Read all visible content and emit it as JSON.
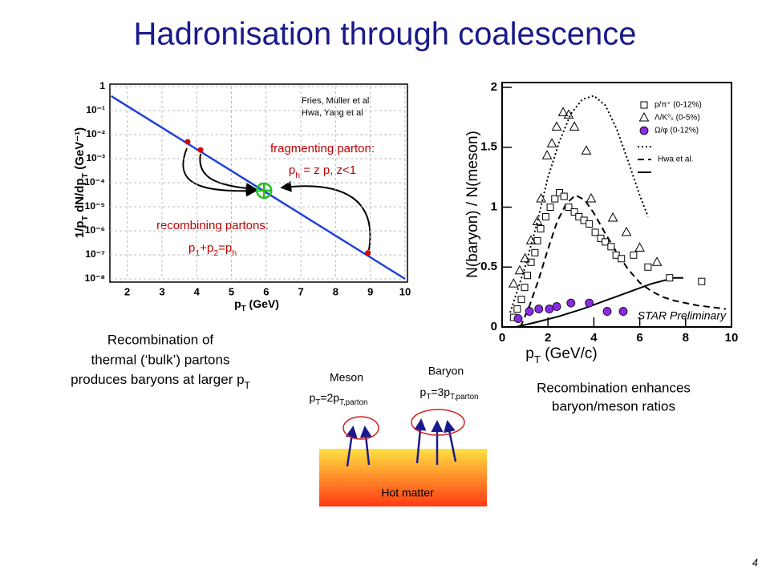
{
  "slide": {
    "title": "Hadronisation through coalescence",
    "page_number": "4",
    "left_caption": [
      "Recombination of",
      "thermal (‘bulk’) partons",
      [
        "produces baryons at larger p",
        "T"
      ]
    ],
    "right_caption": [
      "Recombination enhances",
      "baryon/meson ratios"
    ]
  },
  "chart_data": [
    {
      "type": "line",
      "ylabel": [
        "1/p",
        "T",
        " dN/dp",
        "T",
        " (GeV⁻¹)"
      ],
      "xlabel": [
        "p",
        "T",
        " (GeV)"
      ],
      "log_y": true,
      "grid": true,
      "xlim": [
        1.5,
        10
      ],
      "xticks": [
        2,
        3,
        4,
        5,
        6,
        7,
        8,
        9,
        10
      ],
      "ylim": [
        1e-08,
        1
      ],
      "yticks": [
        1,
        {
          "value": 0.1,
          "label": "10⁻¹"
        },
        {
          "value": 0.01,
          "label": "10⁻²"
        },
        {
          "value": 0.001,
          "label": "10⁻³"
        },
        {
          "value": 0.0001,
          "label": "10⁻⁴"
        },
        {
          "value": 1e-05,
          "label": "10⁻⁵"
        },
        {
          "value": 1e-06,
          "label": "10⁻⁶"
        },
        {
          "value": 1e-07,
          "label": "10⁻⁷"
        },
        {
          "value": 1e-08,
          "label": "10⁻⁸"
        }
      ],
      "line": {
        "color": "#1f3fd6",
        "x": [
          1.54,
          10
        ],
        "values": [
          0.4,
          1e-08
        ]
      },
      "partons": {
        "color": "#d40000",
        "x": [
          3.74,
          4.11,
          8.93
        ],
        "values": [
          0.005,
          0.0023,
          1.2e-07
        ]
      },
      "hadron": {
        "color": "#22c022",
        "x": [
          5.94
        ],
        "values": [
          4.7e-05
        ]
      },
      "references": [
        "Fries, Muller et al",
        "Hwa, Yang et al"
      ],
      "annotations": {
        "fragmenting": "fragmenting parton:",
        "fragmenting_formula": [
          "p",
          "h",
          " = z p, z<1"
        ],
        "recombining": "recombining partons:",
        "recombining_formula": [
          "p",
          "1",
          "+p",
          "2",
          "=p",
          "h"
        ]
      }
    },
    {
      "type": "scatter",
      "ylabel": "N(baryon) / N(meson)",
      "xlabel": [
        "p",
        "T",
        " (GeV/c)"
      ],
      "xlim": [
        0,
        10
      ],
      "xticks": [
        0,
        2,
        4,
        6,
        8,
        10
      ],
      "ylim": [
        0,
        2
      ],
      "yticks": [
        0,
        0.5,
        1,
        1.5,
        2
      ],
      "series": [
        {
          "name": "p/π⁺ (0-12%)",
          "marker": "square",
          "color": "#000000",
          "x": [
            0.5,
            0.66,
            0.84,
            0.98,
            1.1,
            1.26,
            1.43,
            1.54,
            1.68,
            1.9,
            2.1,
            2.3,
            2.5,
            2.7,
            2.9,
            3.15,
            3.35,
            3.57,
            3.8,
            4.06,
            4.3,
            4.5,
            4.75,
            4.97,
            5.2,
            5.73,
            6.36,
            7.3,
            8.7
          ],
          "values": [
            0.08,
            0.15,
            0.23,
            0.33,
            0.43,
            0.54,
            0.62,
            0.72,
            0.82,
            0.92,
            1.0,
            1.07,
            1.12,
            1.09,
            1.0,
            0.96,
            0.92,
            0.89,
            0.86,
            0.79,
            0.74,
            0.71,
            0.67,
            0.6,
            0.57,
            0.6,
            0.5,
            0.41,
            0.38
          ]
        },
        {
          "name": "Λ/K⁰ₛ (0-5%)",
          "marker": "triangle",
          "color": "#000000",
          "x": [
            0.5,
            0.77,
            1.0,
            1.26,
            1.54,
            1.7,
            1.96,
            2.17,
            2.38,
            2.66,
            2.9,
            3.15,
            3.67,
            3.88,
            4.83,
            5.42,
            6.0,
            6.75
          ],
          "values": [
            0.36,
            0.47,
            0.57,
            0.72,
            0.88,
            1.07,
            1.43,
            1.53,
            1.67,
            1.79,
            1.77,
            1.67,
            1.47,
            1.07,
            0.91,
            0.79,
            0.66,
            0.54
          ]
        },
        {
          "name": "Ω/φ (0-12%)",
          "marker": "circle",
          "color": "#8a2be2",
          "x": [
            0.7,
            1.19,
            1.6,
            2.06,
            2.38,
            3.0,
            3.8,
            4.58,
            5.28
          ],
          "values": [
            0.07,
            0.13,
            0.15,
            0.15,
            0.17,
            0.2,
            0.2,
            0.13,
            0.13
          ]
        }
      ],
      "curves": [
        {
          "style": "dotted",
          "x": [
            0.35,
            1.0,
            1.5,
            2.0,
            2.5,
            3.0,
            3.5,
            4.0,
            4.5,
            5.0,
            5.5,
            6.0,
            6.36
          ],
          "values": [
            0.12,
            0.5,
            0.85,
            1.25,
            1.55,
            1.78,
            1.9,
            1.93,
            1.85,
            1.65,
            1.38,
            1.1,
            0.92
          ]
        },
        {
          "name": "Hwa et al.",
          "style": "dashed",
          "x": [
            0.8,
            1.2,
            1.6,
            2.0,
            2.4,
            2.8,
            3.2,
            3.6,
            4.0,
            4.5,
            5.0,
            5.5,
            6.0,
            6.5,
            7.0,
            7.5,
            8.5,
            9.75
          ],
          "values": [
            0.0,
            0.18,
            0.4,
            0.65,
            0.88,
            1.03,
            1.1,
            1.06,
            0.95,
            0.78,
            0.62,
            0.48,
            0.37,
            0.3,
            0.25,
            0.22,
            0.18,
            0.15
          ]
        },
        {
          "style": "solid",
          "x": [
            0.6,
            1.5,
            2.5,
            3.5,
            4.5,
            5.5,
            6.5,
            7.5,
            7.9
          ],
          "values": [
            0.0,
            0.04,
            0.09,
            0.15,
            0.22,
            0.29,
            0.36,
            0.41,
            0.41
          ]
        }
      ],
      "annotation": "STAR Preliminary"
    }
  ],
  "diagram": {
    "medium": "Hot matter",
    "meson": {
      "label": "Meson",
      "formula": [
        "p",
        "T",
        "=2p",
        "T,parton"
      ]
    },
    "baryon": {
      "label": "Baryon",
      "formula": [
        "p",
        "T",
        "=3p",
        "T,parton"
      ]
    }
  }
}
